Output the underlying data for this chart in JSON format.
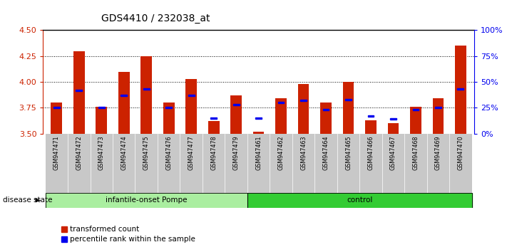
{
  "title": "GDS4410 / 232038_at",
  "samples": [
    "GSM947471",
    "GSM947472",
    "GSM947473",
    "GSM947474",
    "GSM947475",
    "GSM947476",
    "GSM947477",
    "GSM947478",
    "GSM947479",
    "GSM947461",
    "GSM947462",
    "GSM947463",
    "GSM947464",
    "GSM947465",
    "GSM947466",
    "GSM947467",
    "GSM947468",
    "GSM947469",
    "GSM947470"
  ],
  "red_values": [
    3.8,
    4.3,
    3.76,
    4.1,
    4.25,
    3.8,
    4.03,
    3.62,
    3.87,
    3.52,
    3.84,
    3.98,
    3.8,
    4.0,
    3.63,
    3.6,
    3.76,
    3.84,
    4.35
  ],
  "blue_values": [
    3.75,
    3.92,
    3.75,
    3.87,
    3.93,
    3.75,
    3.87,
    3.65,
    3.78,
    3.65,
    3.8,
    3.82,
    3.73,
    3.83,
    3.67,
    3.64,
    3.73,
    3.75,
    3.93
  ],
  "bar_base": 3.5,
  "ylim_left": [
    3.5,
    4.5
  ],
  "ylim_right": [
    0,
    100
  ],
  "yticks_left": [
    3.5,
    3.75,
    4.0,
    4.25,
    4.5
  ],
  "yticks_right": [
    0,
    25,
    50,
    75,
    100
  ],
  "ytick_labels_right": [
    "0%",
    "25%",
    "50%",
    "75%",
    "100%"
  ],
  "grid_values": [
    3.75,
    4.0,
    4.25
  ],
  "group1_label": "infantile-onset Pompe",
  "group2_label": "control",
  "group1_count": 9,
  "group2_count": 10,
  "disease_state_label": "disease state",
  "legend1_label": "transformed count",
  "legend2_label": "percentile rank within the sample",
  "bar_color": "#CC2200",
  "blue_color": "#0000EE",
  "group1_bg": "#AAEEA0",
  "group2_bg": "#33CC33",
  "tick_bg": "#C8C8C8",
  "title_fontsize": 10,
  "tick_fontsize": 8
}
